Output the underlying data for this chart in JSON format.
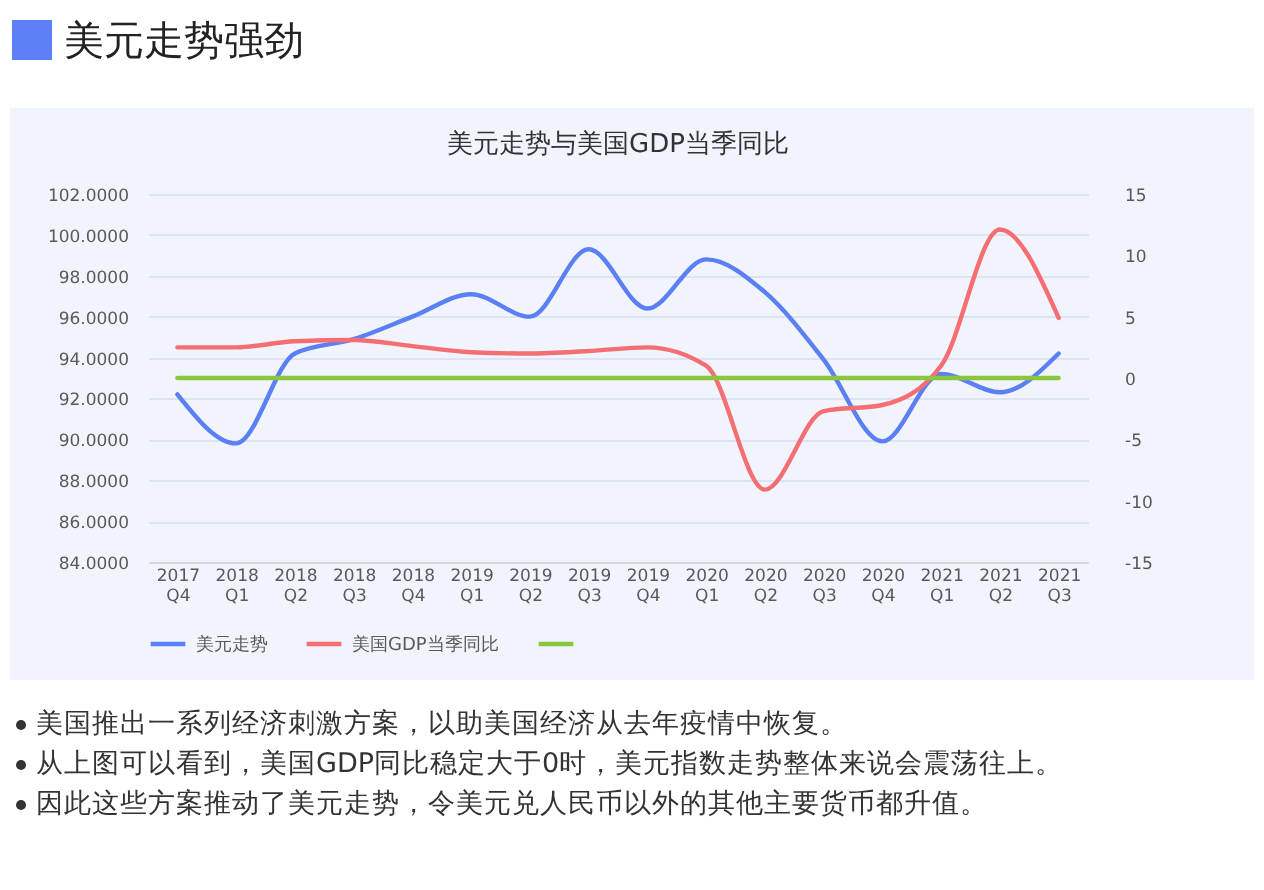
{
  "chart_data": {
    "type": "line",
    "title": "美元走势强劲",
    "subtitle": "美元走势与美国GDP当季同比",
    "categories": [
      "2017 Q4",
      "2018 Q1",
      "2018 Q2",
      "2018 Q3",
      "2018 Q4",
      "2019 Q1",
      "2019 Q2",
      "2019 Q3",
      "2019 Q4",
      "2020 Q1",
      "2020 Q2",
      "2020 Q3",
      "2020 Q4",
      "2021 Q1",
      "2021 Q2",
      "2021 Q3"
    ],
    "series": [
      {
        "name": "美元走势",
        "color": "#5b7ff5",
        "values": [
          92.2,
          89.8,
          94.2,
          94.9,
          96.0,
          97.1,
          96.0,
          99.3,
          96.4,
          98.8,
          97.2,
          93.9,
          89.9,
          93.2,
          92.3,
          94.2
        ]
      },
      {
        "name": "美国GDP当季同比",
        "color": "#f56e73",
        "axis": "y2",
        "values": [
          2.5,
          2.5,
          3.0,
          3.1,
          2.6,
          2.1,
          2.0,
          2.2,
          2.5,
          1.0,
          -9.1,
          -2.7,
          -2.2,
          1.0,
          12.1,
          4.9
        ]
      },
      {
        "color": "#8cc63f",
        "axis": "y2",
        "values": [
          0,
          0,
          0,
          0,
          0,
          0,
          0,
          0,
          0,
          0,
          0,
          0,
          0,
          0,
          0,
          0
        ]
      }
    ],
    "ylim": [
      84,
      102
    ],
    "yticks": [
      {
        "value": 84,
        "label": "84.0000"
      },
      {
        "value": 86,
        "label": "86.0000"
      },
      {
        "value": 88,
        "label": "88.0000"
      },
      {
        "value": 90,
        "label": "90.0000"
      },
      {
        "value": 92,
        "label": "92.0000"
      },
      {
        "value": 94,
        "label": "94.0000"
      },
      {
        "value": 96,
        "label": "96.0000"
      },
      {
        "value": 98,
        "label": "98.0000"
      },
      {
        "value": 100,
        "label": "100.0000"
      },
      {
        "value": 102,
        "label": "102.0000"
      }
    ],
    "y2lim": [
      -15,
      15
    ],
    "y2ticks": [
      -15,
      -10,
      -5,
      0,
      5,
      10,
      15
    ],
    "grid": "y",
    "legend": "bottom",
    "line_style": "solid",
    "annotations": [
      "美国推出一系列经济刺激方案，以助美国经济从去年疫情中恢复。",
      "从上图可以看到，美国GDP同比稳定大于0时，美元指数走势整体来说会震荡往上。",
      "因此这些方案推动了美元走势，令美元兑人民币以外的其他主要货币都升值。"
    ]
  }
}
